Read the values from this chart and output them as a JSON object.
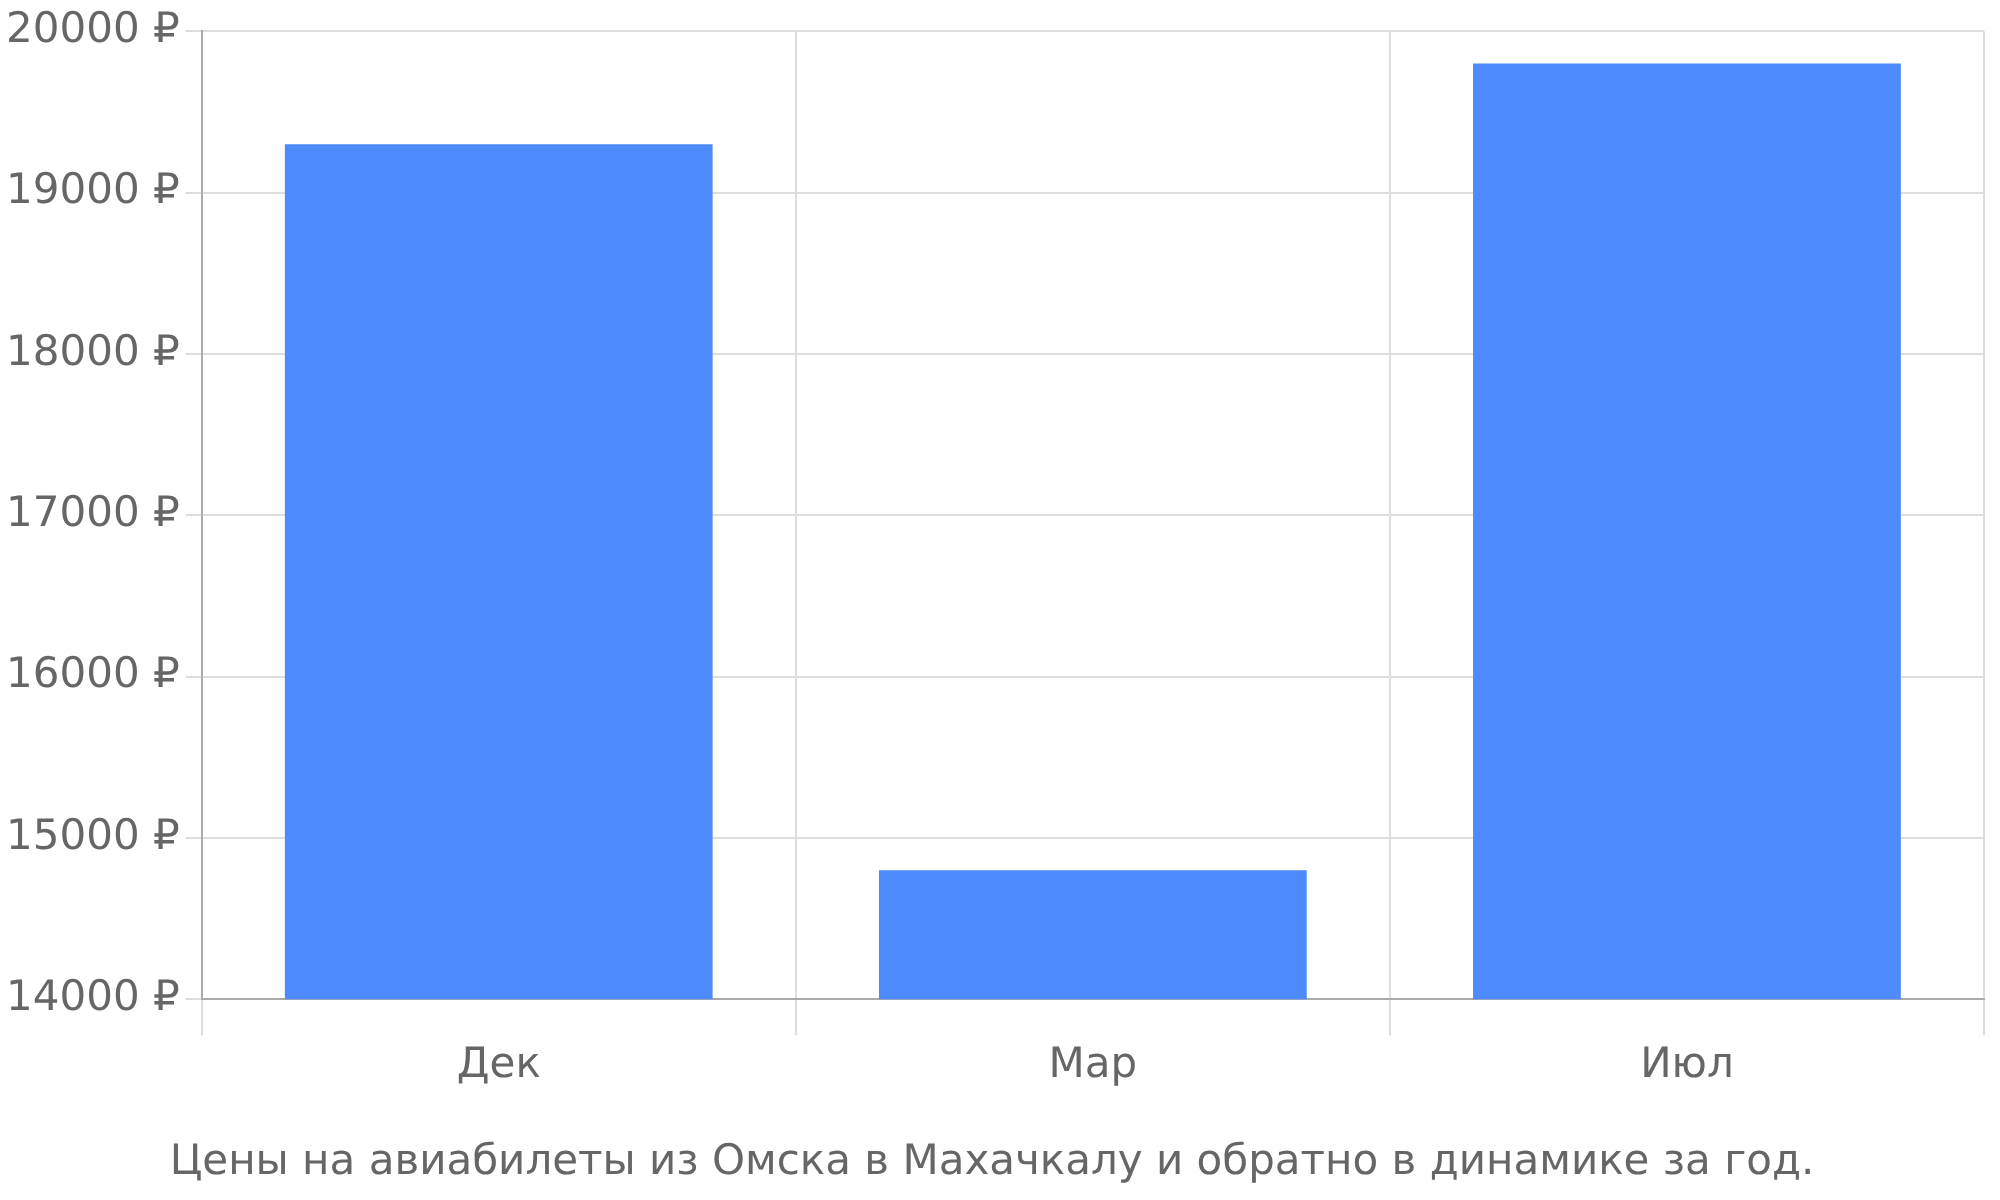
{
  "chart_data": {
    "type": "bar",
    "title": "Цены на авиабилеты из Омска в Махачкалу и обратно в динамике за год.",
    "categories": [
      "Дек",
      "Мар",
      "Июл"
    ],
    "values": [
      19300,
      14800,
      19800
    ],
    "color": "#4d8afc",
    "ylim": [
      14000,
      20000
    ],
    "yticks": [
      {
        "value": 14000,
        "label": "14000 ₽"
      },
      {
        "value": 15000,
        "label": "15000 ₽"
      },
      {
        "value": 16000,
        "label": "16000 ₽"
      },
      {
        "value": 17000,
        "label": "17000 ₽"
      },
      {
        "value": 18000,
        "label": "18000 ₽"
      },
      {
        "value": 19000,
        "label": "19000 ₽"
      },
      {
        "value": 20000,
        "label": "20000 ₽"
      }
    ],
    "grid": true,
    "legend": false
  }
}
